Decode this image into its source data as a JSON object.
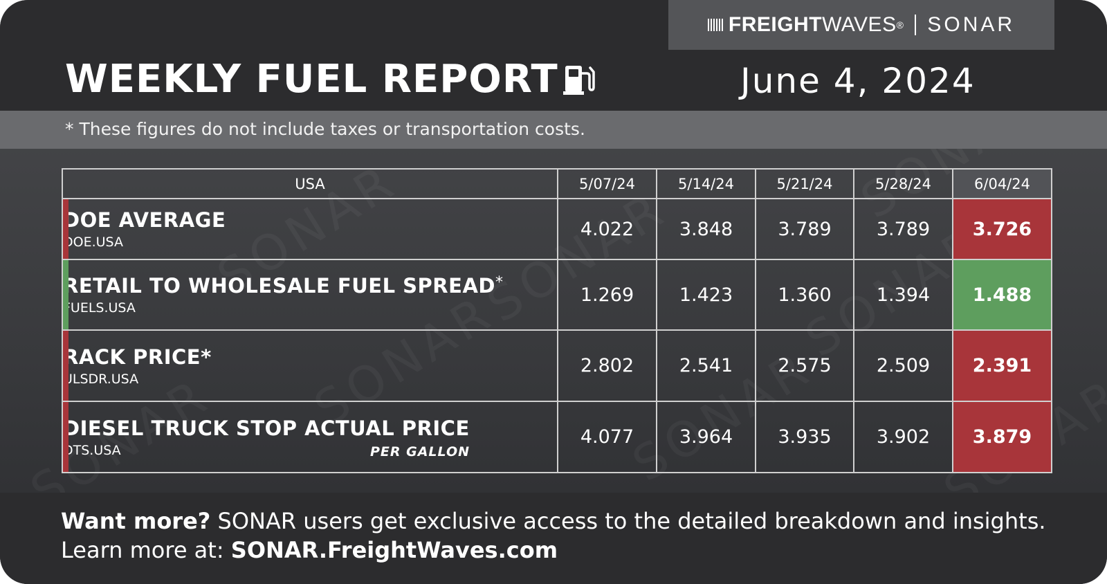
{
  "brand": {
    "freight": "FREIGHT",
    "waves": "WAVES",
    "reg": "®",
    "sonar": "SONAR"
  },
  "header": {
    "title": "WEEKLY FUEL REPORT",
    "date": "June 4, 2024",
    "icon": "fuel-pump-icon"
  },
  "note": "* These figures do not include taxes or transportation costs.",
  "watermark": "SONAR",
  "table": {
    "region": "USA",
    "dates": [
      "5/07/24",
      "5/14/24",
      "5/21/24",
      "5/28/24",
      "6/04/24"
    ],
    "rows": [
      {
        "title": "DOE AVERAGE",
        "asterisk": "",
        "code": "DOE.USA",
        "values": [
          "4.022",
          "3.848",
          "3.789",
          "3.789"
        ],
        "current": "3.726",
        "color": "#a8353a"
      },
      {
        "title": "RETAIL TO WHOLESALE FUEL SPREAD",
        "asterisk": "*",
        "code": "FUELS.USA",
        "values": [
          "1.269",
          "1.423",
          "1.360",
          "1.394"
        ],
        "current": "1.488",
        "color": "#5e9e5e"
      },
      {
        "title": "RACK PRICE*",
        "asterisk": "",
        "code": "ULSDR.USA",
        "values": [
          "2.802",
          "2.541",
          "2.575",
          "2.509"
        ],
        "current": "2.391",
        "color": "#a8353a"
      },
      {
        "title": "DIESEL TRUCK STOP ACTUAL PRICE",
        "asterisk": "",
        "code": "DTS.USA",
        "note": "PER GALLON",
        "values": [
          "4.077",
          "3.964",
          "3.935",
          "3.902"
        ],
        "current": "3.879",
        "color": "#a8353a"
      }
    ]
  },
  "footer": {
    "lead": "Want more?",
    "text": " SONAR users get exclusive access to the detailed breakdown and insights.",
    "learn": "Learn more at: ",
    "url": "SONAR.FreightWaves.com"
  }
}
